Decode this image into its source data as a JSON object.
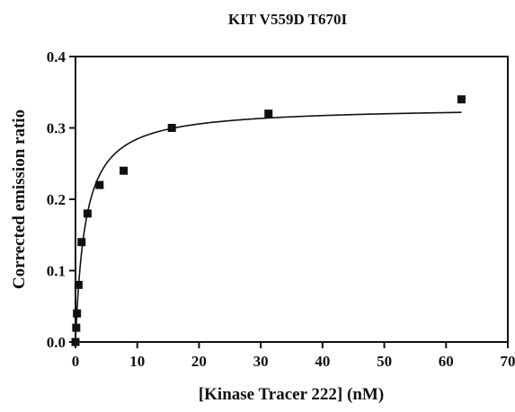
{
  "chart_data": {
    "type": "scatter",
    "title": "KIT V559D T670I",
    "xlabel": "[Kinase Tracer 222] (nM)",
    "ylabel": "Corrected emission ratio",
    "xlim": [
      0,
      70
    ],
    "ylim": [
      0,
      0.4
    ],
    "x_ticks": [
      "0",
      "10",
      "20",
      "30",
      "40",
      "50",
      "60",
      "70"
    ],
    "y_ticks": [
      "0.0",
      "0.1",
      "0.2",
      "0.3",
      "0.4"
    ],
    "grid": false,
    "legend": "none",
    "series": [
      {
        "marker": "square",
        "x": [
          0,
          0.12,
          0.24,
          0.49,
          0.98,
          1.95,
          3.9,
          7.8,
          15.6,
          31.25,
          62.5
        ],
        "y": [
          0.0,
          0.02,
          0.04,
          0.08,
          0.14,
          0.18,
          0.22,
          0.24,
          0.3,
          0.32,
          0.34
        ]
      }
    ],
    "fit_curve": {
      "model": "one-site saturation binding",
      "bmax": 0.33,
      "kd": 1.6,
      "x_range": [
        0,
        62.5
      ]
    },
    "colors": {
      "marker": "#111111",
      "curve": "#111111",
      "axes": "#111111"
    }
  }
}
